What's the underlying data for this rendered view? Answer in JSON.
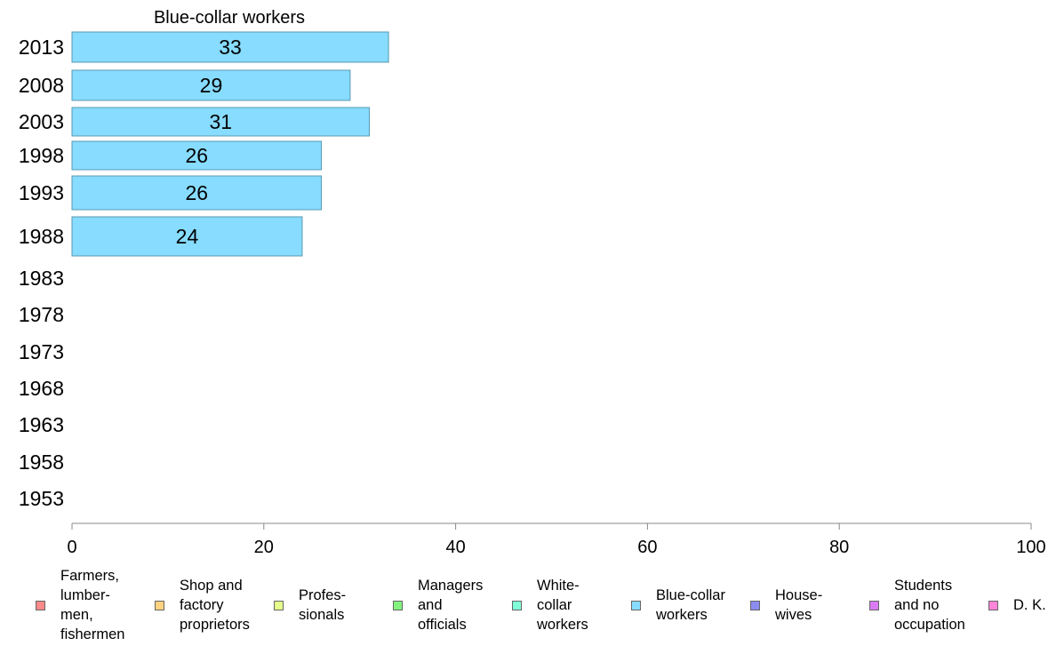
{
  "chart_data": {
    "type": "bar",
    "orientation": "horizontal",
    "title": "Blue-collar workers",
    "categories": [
      "2013",
      "2008",
      "2003",
      "1998",
      "1993",
      "1988",
      "1983",
      "1978",
      "1973",
      "1968",
      "1963",
      "1958",
      "1953"
    ],
    "series": [
      {
        "name": "Blue-collar workers",
        "values": [
          33,
          29,
          31,
          26,
          26,
          24,
          null,
          null,
          null,
          null,
          null,
          null,
          null
        ]
      }
    ],
    "value_labels": [
      "33",
      "29",
      "31",
      "26",
      "26",
      "24"
    ],
    "xlim": [
      0,
      100
    ],
    "x_ticks": [
      0,
      20,
      40,
      60,
      80,
      100
    ],
    "bar_color": "#87dcff",
    "bar_edge_color": "#5a98b0",
    "grid": false,
    "legend_position": "bottom",
    "legend": [
      {
        "label": "Farmers,\nlumber-\nmen,\nfishermen",
        "color": "#ff8a8a"
      },
      {
        "label": "Shop and\nfactory\nproprietors",
        "color": "#ffd37f"
      },
      {
        "label": "Profes-\nsionals",
        "color": "#e6ff8c"
      },
      {
        "label": "Managers\nand\nofficials",
        "color": "#84f27f"
      },
      {
        "label": "White-\ncollar\nworkers",
        "color": "#80ffd9"
      },
      {
        "label": "Blue-collar\nworkers",
        "color": "#87dcff"
      },
      {
        "label": "House-\nwives",
        "color": "#8a8cf0"
      },
      {
        "label": "Students\nand no\noccupation",
        "color": "#d97bf5"
      },
      {
        "label": "D. K.",
        "color": "#ff85d9"
      }
    ]
  }
}
